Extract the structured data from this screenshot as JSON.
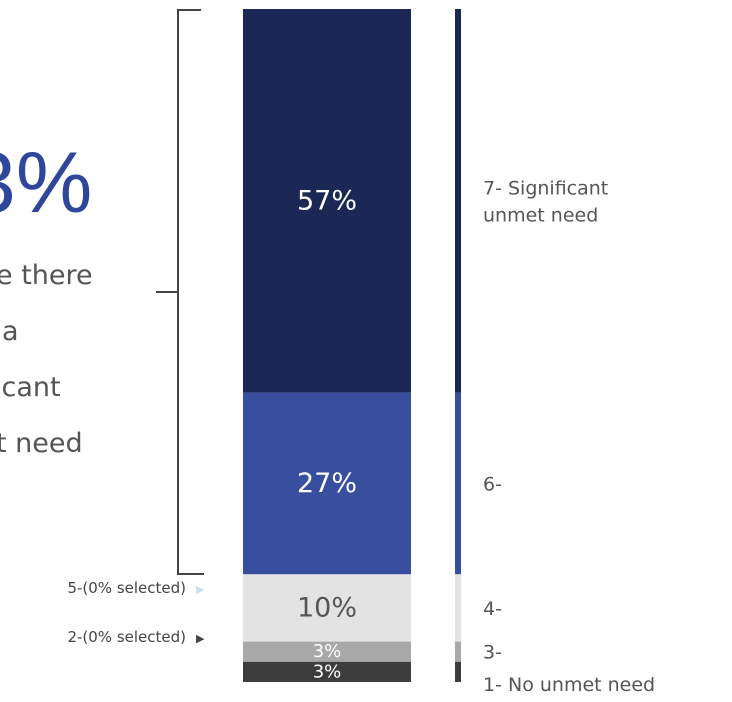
{
  "headline": {
    "percent": "3%",
    "lines": [
      "e there",
      "a",
      "icant",
      "t need"
    ]
  },
  "notes": [
    {
      "text": "5-(0% selected)",
      "arrow": "▶",
      "arrow_color": "#cfe0f5"
    },
    {
      "text": "2-(0% selected)",
      "arrow": "▶",
      "arrow_color": "#444444"
    }
  ],
  "chart_data": {
    "type": "bar",
    "stacked": true,
    "categories": [
      "7- Significant unmet need",
      "6-",
      "4-",
      "3-",
      "1- No unmet need"
    ],
    "values": [
      57,
      27,
      10,
      3,
      3
    ],
    "data_labels": [
      "57%",
      "27%",
      "10%",
      "3%",
      "3%"
    ],
    "colors": [
      "#1b2754",
      "#374f9e",
      "#e3e3e3",
      "#a8a8a8",
      "#3d3d3d"
    ],
    "label_colors": [
      "#ffffff",
      "#ffffff",
      "#555555",
      "#ffffff",
      "#ffffff"
    ],
    "legend_labels": [
      [
        "7- Significant",
        "unmet need"
      ],
      [
        "6-"
      ],
      [
        "4-"
      ],
      [
        "3-"
      ],
      [
        "1- No unmet need"
      ]
    ],
    "grid": false,
    "legend_position": "right"
  }
}
